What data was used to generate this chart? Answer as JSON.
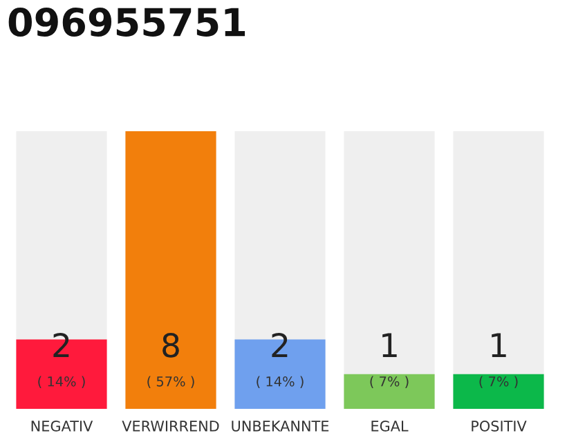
{
  "chart_data": {
    "type": "bar",
    "title": "096955751",
    "categories": [
      "NEGATIV",
      "VERWIRREND",
      "UNBEKANNTE",
      "EGAL",
      "POSITIV"
    ],
    "values": [
      2,
      8,
      2,
      1,
      1
    ],
    "colors": [
      "#ff1a3c",
      "#f27f0c",
      "#6fa0ee",
      "#7dc85a",
      "#0cb84a"
    ],
    "ylim": [
      0,
      8
    ],
    "tick_labels": "x",
    "grid": false,
    "data_labels": true,
    "annotations": [
      "( 14% )",
      "( 57% )",
      "( 14% )",
      "( 7% )",
      "( 7% )"
    ]
  }
}
